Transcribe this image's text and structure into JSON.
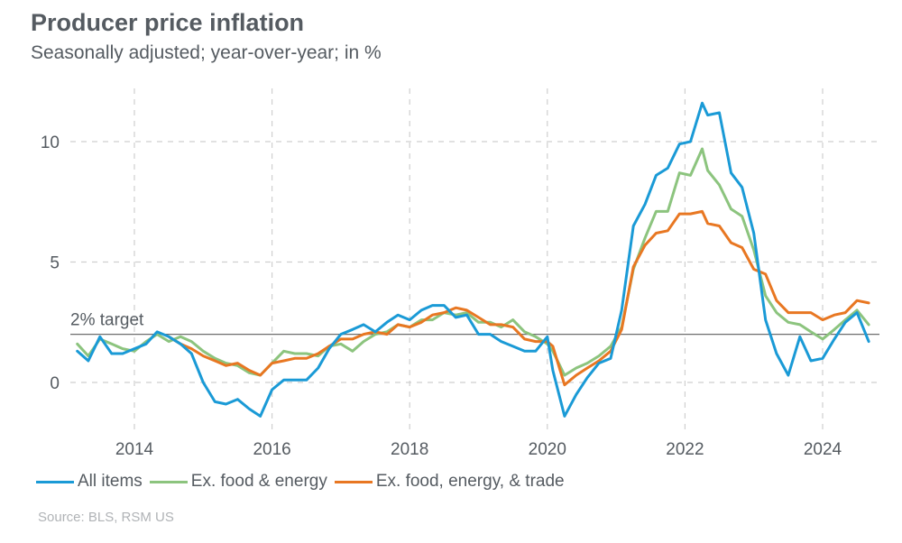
{
  "title": "Producer price inflation",
  "subtitle": "Seasonally adjusted; year-over-year; in %",
  "source": "Source: BLS, RSM US",
  "chart_data": {
    "type": "line",
    "title": "Producer price inflation",
    "subtitle": "Seasonally adjusted; year-over-year; in %",
    "xlabel": "",
    "ylabel": "",
    "xlim": [
      2013.1,
      2024.75
    ],
    "ylim": [
      -2.2,
      12
    ],
    "x_ticks": [
      2014,
      2016,
      2018,
      2020,
      2022,
      2024
    ],
    "x_tick_labels": [
      "2014",
      "2016",
      "2018",
      "2020",
      "2022",
      "2024"
    ],
    "y_ticks": [
      0,
      5,
      10
    ],
    "y_tick_labels": [
      "0",
      "5",
      "10"
    ],
    "grid": true,
    "legend_position": "bottom-left",
    "reference_line": {
      "value": 2,
      "label": "2% target"
    },
    "series": [
      {
        "name": "All items",
        "color": "#1a9ad6",
        "x": [
          2013.17,
          2013.33,
          2013.5,
          2013.67,
          2013.83,
          2014.0,
          2014.17,
          2014.33,
          2014.5,
          2014.67,
          2014.83,
          2015.0,
          2015.17,
          2015.33,
          2015.5,
          2015.67,
          2015.83,
          2016.0,
          2016.17,
          2016.33,
          2016.5,
          2016.67,
          2016.83,
          2017.0,
          2017.17,
          2017.33,
          2017.5,
          2017.67,
          2017.83,
          2018.0,
          2018.17,
          2018.33,
          2018.5,
          2018.67,
          2018.83,
          2019.0,
          2019.17,
          2019.33,
          2019.5,
          2019.67,
          2019.83,
          2020.0,
          2020.08,
          2020.25,
          2020.42,
          2020.58,
          2020.75,
          2020.92,
          2021.08,
          2021.25,
          2021.42,
          2021.58,
          2021.75,
          2021.92,
          2022.08,
          2022.25,
          2022.33,
          2022.5,
          2022.67,
          2022.83,
          2023.0,
          2023.17,
          2023.33,
          2023.5,
          2023.67,
          2023.83,
          2024.0,
          2024.17,
          2024.33,
          2024.5,
          2024.67
        ],
        "values": [
          1.3,
          0.9,
          1.9,
          1.2,
          1.2,
          1.4,
          1.6,
          2.1,
          1.9,
          1.6,
          1.2,
          0.0,
          -0.8,
          -0.9,
          -0.7,
          -1.1,
          -1.4,
          -0.3,
          0.1,
          0.1,
          0.1,
          0.6,
          1.4,
          2.0,
          2.2,
          2.4,
          2.1,
          2.5,
          2.8,
          2.6,
          3.0,
          3.2,
          3.2,
          2.7,
          2.8,
          2.0,
          2.0,
          1.7,
          1.5,
          1.3,
          1.3,
          1.9,
          0.5,
          -1.4,
          -0.5,
          0.2,
          0.8,
          1.0,
          3.0,
          6.5,
          7.4,
          8.6,
          8.9,
          9.9,
          10.0,
          11.6,
          11.1,
          11.2,
          8.7,
          8.1,
          6.2,
          2.6,
          1.2,
          0.3,
          1.9,
          0.9,
          1.0,
          1.8,
          2.5,
          2.9,
          1.7
        ]
      },
      {
        "name": "Ex. food & energy",
        "color": "#8cc47e",
        "x": [
          2013.17,
          2013.33,
          2013.5,
          2013.67,
          2013.83,
          2014.0,
          2014.17,
          2014.33,
          2014.5,
          2014.67,
          2014.83,
          2015.0,
          2015.17,
          2015.33,
          2015.5,
          2015.67,
          2015.83,
          2016.0,
          2016.17,
          2016.33,
          2016.5,
          2016.67,
          2016.83,
          2017.0,
          2017.17,
          2017.33,
          2017.5,
          2017.67,
          2017.83,
          2018.0,
          2018.17,
          2018.33,
          2018.5,
          2018.67,
          2018.83,
          2019.0,
          2019.17,
          2019.33,
          2019.5,
          2019.67,
          2019.83,
          2020.0,
          2020.08,
          2020.25,
          2020.42,
          2020.58,
          2020.75,
          2020.92,
          2021.08,
          2021.25,
          2021.42,
          2021.58,
          2021.75,
          2021.92,
          2022.08,
          2022.25,
          2022.33,
          2022.5,
          2022.67,
          2022.83,
          2023.0,
          2023.17,
          2023.33,
          2023.5,
          2023.67,
          2023.83,
          2024.0,
          2024.17,
          2024.33,
          2024.5,
          2024.67
        ],
        "values": [
          1.6,
          1.1,
          1.8,
          1.6,
          1.4,
          1.3,
          1.7,
          2.0,
          1.7,
          1.9,
          1.7,
          1.3,
          1.0,
          0.8,
          0.7,
          0.4,
          0.3,
          0.8,
          1.3,
          1.2,
          1.2,
          1.1,
          1.5,
          1.6,
          1.3,
          1.7,
          2.0,
          2.1,
          2.4,
          2.3,
          2.6,
          2.6,
          2.9,
          2.8,
          2.9,
          2.5,
          2.5,
          2.3,
          2.6,
          2.1,
          1.9,
          1.6,
          1.3,
          0.3,
          0.6,
          0.8,
          1.1,
          1.5,
          2.3,
          4.7,
          6.0,
          7.1,
          7.1,
          8.7,
          8.6,
          9.7,
          8.8,
          8.2,
          7.2,
          6.9,
          5.5,
          3.6,
          2.9,
          2.5,
          2.4,
          2.1,
          1.8,
          2.2,
          2.6,
          3.0,
          2.4
        ]
      },
      {
        "name": "Ex. food, energy, & trade",
        "color": "#e87722",
        "x": [
          2014.5,
          2014.67,
          2014.83,
          2015.0,
          2015.17,
          2015.33,
          2015.5,
          2015.67,
          2015.83,
          2016.0,
          2016.17,
          2016.33,
          2016.5,
          2016.67,
          2016.83,
          2017.0,
          2017.17,
          2017.33,
          2017.5,
          2017.67,
          2017.83,
          2018.0,
          2018.17,
          2018.33,
          2018.5,
          2018.67,
          2018.83,
          2019.0,
          2019.17,
          2019.33,
          2019.5,
          2019.67,
          2019.83,
          2020.0,
          2020.08,
          2020.25,
          2020.42,
          2020.58,
          2020.75,
          2020.92,
          2021.08,
          2021.25,
          2021.42,
          2021.58,
          2021.75,
          2021.92,
          2022.08,
          2022.25,
          2022.33,
          2022.5,
          2022.67,
          2022.83,
          2023.0,
          2023.17,
          2023.33,
          2023.5,
          2023.67,
          2023.83,
          2024.0,
          2024.17,
          2024.33,
          2024.5,
          2024.67
        ],
        "values": [
          1.9,
          1.6,
          1.4,
          1.1,
          0.9,
          0.7,
          0.8,
          0.5,
          0.3,
          0.8,
          0.9,
          1.0,
          1.0,
          1.2,
          1.5,
          1.8,
          1.8,
          2.0,
          2.1,
          2.0,
          2.4,
          2.3,
          2.5,
          2.8,
          2.9,
          3.1,
          3.0,
          2.7,
          2.4,
          2.4,
          2.3,
          1.8,
          1.7,
          1.7,
          1.5,
          -0.1,
          0.3,
          0.6,
          0.9,
          1.3,
          2.2,
          4.8,
          5.7,
          6.2,
          6.3,
          7.0,
          7.0,
          7.1,
          6.6,
          6.5,
          5.8,
          5.6,
          4.7,
          4.5,
          3.4,
          2.9,
          2.9,
          2.9,
          2.6,
          2.8,
          2.9,
          3.4,
          3.3
        ]
      }
    ]
  },
  "legend": [
    {
      "label": "All items",
      "color": "#1a9ad6"
    },
    {
      "label": "Ex. food & energy",
      "color": "#8cc47e"
    },
    {
      "label": "Ex. food, energy, & trade",
      "color": "#e87722"
    }
  ]
}
